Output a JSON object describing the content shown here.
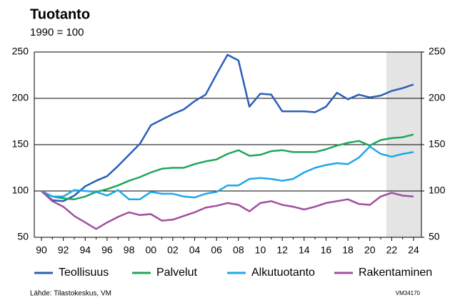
{
  "chart_data": {
    "type": "line",
    "title": "Tuotanto",
    "subtitle": "1990 = 100",
    "source": "Lähde: Tilastokeskus, VM",
    "code": "VM34170",
    "categories": [
      "90",
      null,
      "92",
      null,
      "94",
      null,
      "96",
      null,
      "98",
      null,
      "00",
      null,
      "02",
      null,
      "04",
      null,
      "06",
      null,
      "08",
      null,
      "10",
      null,
      "12",
      null,
      "14",
      null,
      "16",
      null,
      "18",
      null,
      "20",
      null,
      "22",
      null,
      "24"
    ],
    "series": [
      {
        "name": "Teollisuus",
        "color": "#2a5fb7",
        "values": [
          100,
          90,
          89,
          95,
          105,
          111,
          116,
          127,
          139,
          151,
          171,
          177,
          183,
          188,
          197,
          204,
          226,
          247,
          241,
          191,
          205,
          204,
          186,
          186,
          186,
          185,
          191,
          206,
          199,
          204,
          201,
          203,
          208,
          211,
          215
        ]
      },
      {
        "name": "Palvelut",
        "color": "#1fa55a",
        "values": [
          100,
          94,
          92,
          91,
          94,
          99,
          102,
          106,
          111,
          115,
          120,
          124,
          125,
          125,
          129,
          132,
          134,
          140,
          144,
          138,
          139,
          143,
          144,
          142,
          142,
          142,
          145,
          149,
          152,
          154,
          149,
          155,
          157,
          158,
          161
        ]
      },
      {
        "name": "Alkutuotanto",
        "color": "#1ea7ea",
        "values": [
          100,
          94,
          94,
          101,
          100,
          99,
          95,
          101,
          91,
          91,
          99,
          97,
          97,
          94,
          93,
          97,
          99,
          106,
          106,
          113,
          114,
          113,
          111,
          113,
          120,
          125,
          128,
          130,
          129,
          136,
          148,
          140,
          137,
          140,
          142
        ]
      },
      {
        "name": "Rakentaminen",
        "color": "#a04fa0",
        "values": [
          100,
          89,
          83,
          73,
          66,
          59,
          66,
          72,
          77,
          74,
          75,
          68,
          69,
          73,
          77,
          82,
          84,
          87,
          85,
          78,
          87,
          89,
          85,
          83,
          80,
          83,
          87,
          89,
          91,
          86,
          85,
          94,
          98,
          95,
          94
        ]
      }
    ],
    "ylim": [
      50,
      250
    ],
    "yticks": [
      50,
      100,
      150,
      200,
      250
    ],
    "y2lim": [
      50,
      250
    ],
    "y2ticks": [
      50,
      100,
      150,
      200,
      250
    ],
    "grid": true,
    "legend": "bottom"
  }
}
